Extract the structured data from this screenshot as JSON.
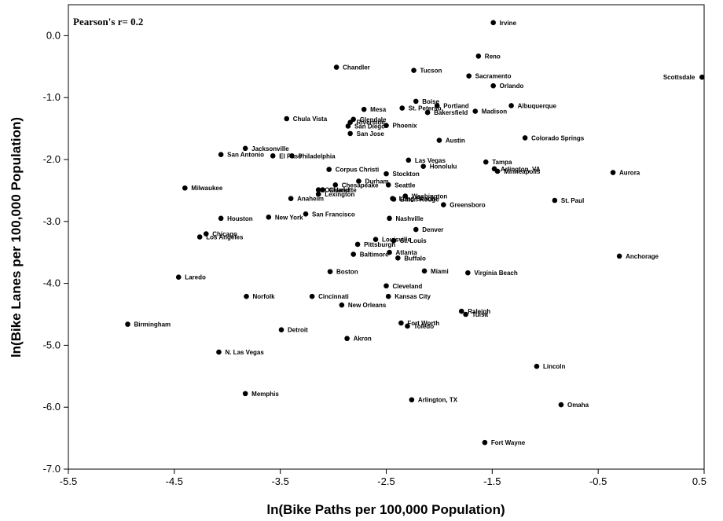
{
  "chart_data": {
    "type": "scatter",
    "annotation": "Pearson's r= 0.2",
    "xlabel": "ln(Bike Paths per 100,000 Population)",
    "ylabel": "ln(Bike Lanes per 100,000 Population)",
    "xlim": [
      -5.5,
      0.5
    ],
    "ylim": [
      -7.0,
      0.5
    ],
    "xticks": [
      -5.5,
      -4.5,
      -3.5,
      -2.5,
      -1.5,
      -0.5,
      0.5
    ],
    "xtick_labels": [
      "-5.5",
      "-4.5",
      "-3.5",
      "-2.5",
      "-1.5",
      "-0.5",
      "0.5"
    ],
    "yticks": [
      -7.0,
      -6.0,
      -5.0,
      -4.0,
      -3.0,
      -2.0,
      -1.0,
      0.0
    ],
    "ytick_labels": [
      "-7.0",
      "-6.0",
      "-5.0",
      "-4.0",
      "-3.0",
      "-2.0",
      "-1.0",
      "0.0"
    ],
    "grid": false,
    "marker_color": "#000000",
    "points": [
      {
        "label": "Irvine",
        "x": -1.49,
        "y": 0.21
      },
      {
        "label": "Reno",
        "x": -1.63,
        "y": -0.33
      },
      {
        "label": "Scottsdale",
        "x": 0.48,
        "y": -0.67
      },
      {
        "label": "Sacramento",
        "x": -1.72,
        "y": -0.65
      },
      {
        "label": "Orlando",
        "x": -1.49,
        "y": -0.81
      },
      {
        "label": "Chandler",
        "x": -2.97,
        "y": -0.51
      },
      {
        "label": "Tucson",
        "x": -2.24,
        "y": -0.56
      },
      {
        "label": "Albuquerque",
        "x": -1.32,
        "y": -1.13
      },
      {
        "label": "Boise",
        "x": -2.22,
        "y": -1.06
      },
      {
        "label": "Portland",
        "x": -2.02,
        "y": -1.13
      },
      {
        "label": "Madison",
        "x": -1.66,
        "y": -1.22
      },
      {
        "label": "Mesa",
        "x": -2.71,
        "y": -1.19
      },
      {
        "label": "St. Petersb.",
        "x": -2.35,
        "y": -1.17
      },
      {
        "label": "Bakersfield",
        "x": -2.11,
        "y": -1.24
      },
      {
        "label": "Riverside",
        "x": -2.84,
        "y": -1.4
      },
      {
        "label": "Chula Vista",
        "x": -3.44,
        "y": -1.34
      },
      {
        "label": "San Diego",
        "x": -2.86,
        "y": -1.46
      },
      {
        "label": "Glendale",
        "x": -2.81,
        "y": -1.35
      },
      {
        "label": "Phoenix",
        "x": -2.5,
        "y": -1.45
      },
      {
        "label": "San Jose",
        "x": -2.84,
        "y": -1.58
      },
      {
        "label": "Austin",
        "x": -2.0,
        "y": -1.69
      },
      {
        "label": "Colorado Springs",
        "x": -1.19,
        "y": -1.65
      },
      {
        "label": "Jacksonville",
        "x": -3.83,
        "y": -1.82
      },
      {
        "label": "San Antonio",
        "x": -4.06,
        "y": -1.92
      },
      {
        "label": "Philadelphia",
        "x": -3.39,
        "y": -1.94
      },
      {
        "label": "El Paso",
        "x": -3.57,
        "y": -1.94
      },
      {
        "label": "Las Vegas",
        "x": -2.29,
        "y": -2.01
      },
      {
        "label": "Tampa",
        "x": -1.56,
        "y": -2.04
      },
      {
        "label": "Corpus Christi",
        "x": -3.04,
        "y": -2.16
      },
      {
        "label": "Honolulu",
        "x": -2.15,
        "y": -2.11
      },
      {
        "label": "Arlington, VA",
        "x": -1.48,
        "y": -2.15
      },
      {
        "label": "Minneapolis",
        "x": -1.45,
        "y": -2.19
      },
      {
        "label": "Aurora",
        "x": -0.36,
        "y": -2.21
      },
      {
        "label": "Stockton",
        "x": -2.5,
        "y": -2.23
      },
      {
        "label": "Durham",
        "x": -2.76,
        "y": -2.35
      },
      {
        "label": "Chesapeake",
        "x": -2.98,
        "y": -2.41
      },
      {
        "label": "Seattle",
        "x": -2.48,
        "y": -2.41
      },
      {
        "label": "Milwaukee",
        "x": -4.4,
        "y": -2.46
      },
      {
        "label": "Oakland",
        "x": -3.14,
        "y": -2.49
      },
      {
        "label": "Charlotte",
        "x": -3.1,
        "y": -2.49
      },
      {
        "label": "Lexington",
        "x": -3.14,
        "y": -2.56
      },
      {
        "label": "Washington",
        "x": -2.32,
        "y": -2.59
      },
      {
        "label": "Anaheim",
        "x": -3.4,
        "y": -2.63
      },
      {
        "label": "Long Beach",
        "x": -2.44,
        "y": -2.63
      },
      {
        "label": "Greensboro",
        "x": -1.96,
        "y": -2.73
      },
      {
        "label": "St. Paul",
        "x": -0.91,
        "y": -2.66
      },
      {
        "label": "Baton Rouge",
        "x": -2.43,
        "y": -2.64
      },
      {
        "label": "San Francisco",
        "x": -3.26,
        "y": -2.88
      },
      {
        "label": "Houston",
        "x": -4.06,
        "y": -2.95
      },
      {
        "label": "New York",
        "x": -3.61,
        "y": -2.93
      },
      {
        "label": "Nashville",
        "x": -2.47,
        "y": -2.95
      },
      {
        "label": "Denver",
        "x": -2.22,
        "y": -3.13
      },
      {
        "label": "Chicago",
        "x": -4.2,
        "y": -3.2
      },
      {
        "label": "Los Angeles",
        "x": -4.26,
        "y": -3.25
      },
      {
        "label": "Louisville",
        "x": -2.6,
        "y": -3.29
      },
      {
        "label": "St. Louis",
        "x": -2.43,
        "y": -3.31
      },
      {
        "label": "Pittsburgh",
        "x": -2.77,
        "y": -3.37
      },
      {
        "label": "Atlanta",
        "x": -2.47,
        "y": -3.5
      },
      {
        "label": "Baltimore",
        "x": -2.81,
        "y": -3.53
      },
      {
        "label": "Buffalo",
        "x": -2.39,
        "y": -3.59
      },
      {
        "label": "Anchorage",
        "x": -0.3,
        "y": -3.56
      },
      {
        "label": "Boston",
        "x": -3.03,
        "y": -3.81
      },
      {
        "label": "Miami",
        "x": -2.14,
        "y": -3.8
      },
      {
        "label": "Virginia Beach",
        "x": -1.73,
        "y": -3.83
      },
      {
        "label": "Laredo",
        "x": -4.46,
        "y": -3.9
      },
      {
        "label": "Cleveland",
        "x": -2.5,
        "y": -4.04
      },
      {
        "label": "Norfolk",
        "x": -3.82,
        "y": -4.21
      },
      {
        "label": "Cincinnati",
        "x": -3.2,
        "y": -4.21
      },
      {
        "label": "Kansas City",
        "x": -2.48,
        "y": -4.21
      },
      {
        "label": "New Orleans",
        "x": -2.92,
        "y": -4.35
      },
      {
        "label": "Raleigh",
        "x": -1.79,
        "y": -4.45
      },
      {
        "label": "Tulsa",
        "x": -1.75,
        "y": -4.5
      },
      {
        "label": "Birmingham",
        "x": -4.94,
        "y": -4.66
      },
      {
        "label": "Fort Worth",
        "x": -2.36,
        "y": -4.64
      },
      {
        "label": "Toledo",
        "x": -2.3,
        "y": -4.69
      },
      {
        "label": "Detroit",
        "x": -3.49,
        "y": -4.75
      },
      {
        "label": "Akron",
        "x": -2.87,
        "y": -4.89
      },
      {
        "label": "N. Las Vegas",
        "x": -4.08,
        "y": -5.11
      },
      {
        "label": "Lincoln",
        "x": -1.08,
        "y": -5.34
      },
      {
        "label": "Memphis",
        "x": -3.83,
        "y": -5.78
      },
      {
        "label": "Arlington, TX",
        "x": -2.26,
        "y": -5.88
      },
      {
        "label": "Omaha",
        "x": -0.85,
        "y": -5.96
      },
      {
        "label": "Fort Wayne",
        "x": -1.57,
        "y": -6.57
      }
    ]
  }
}
